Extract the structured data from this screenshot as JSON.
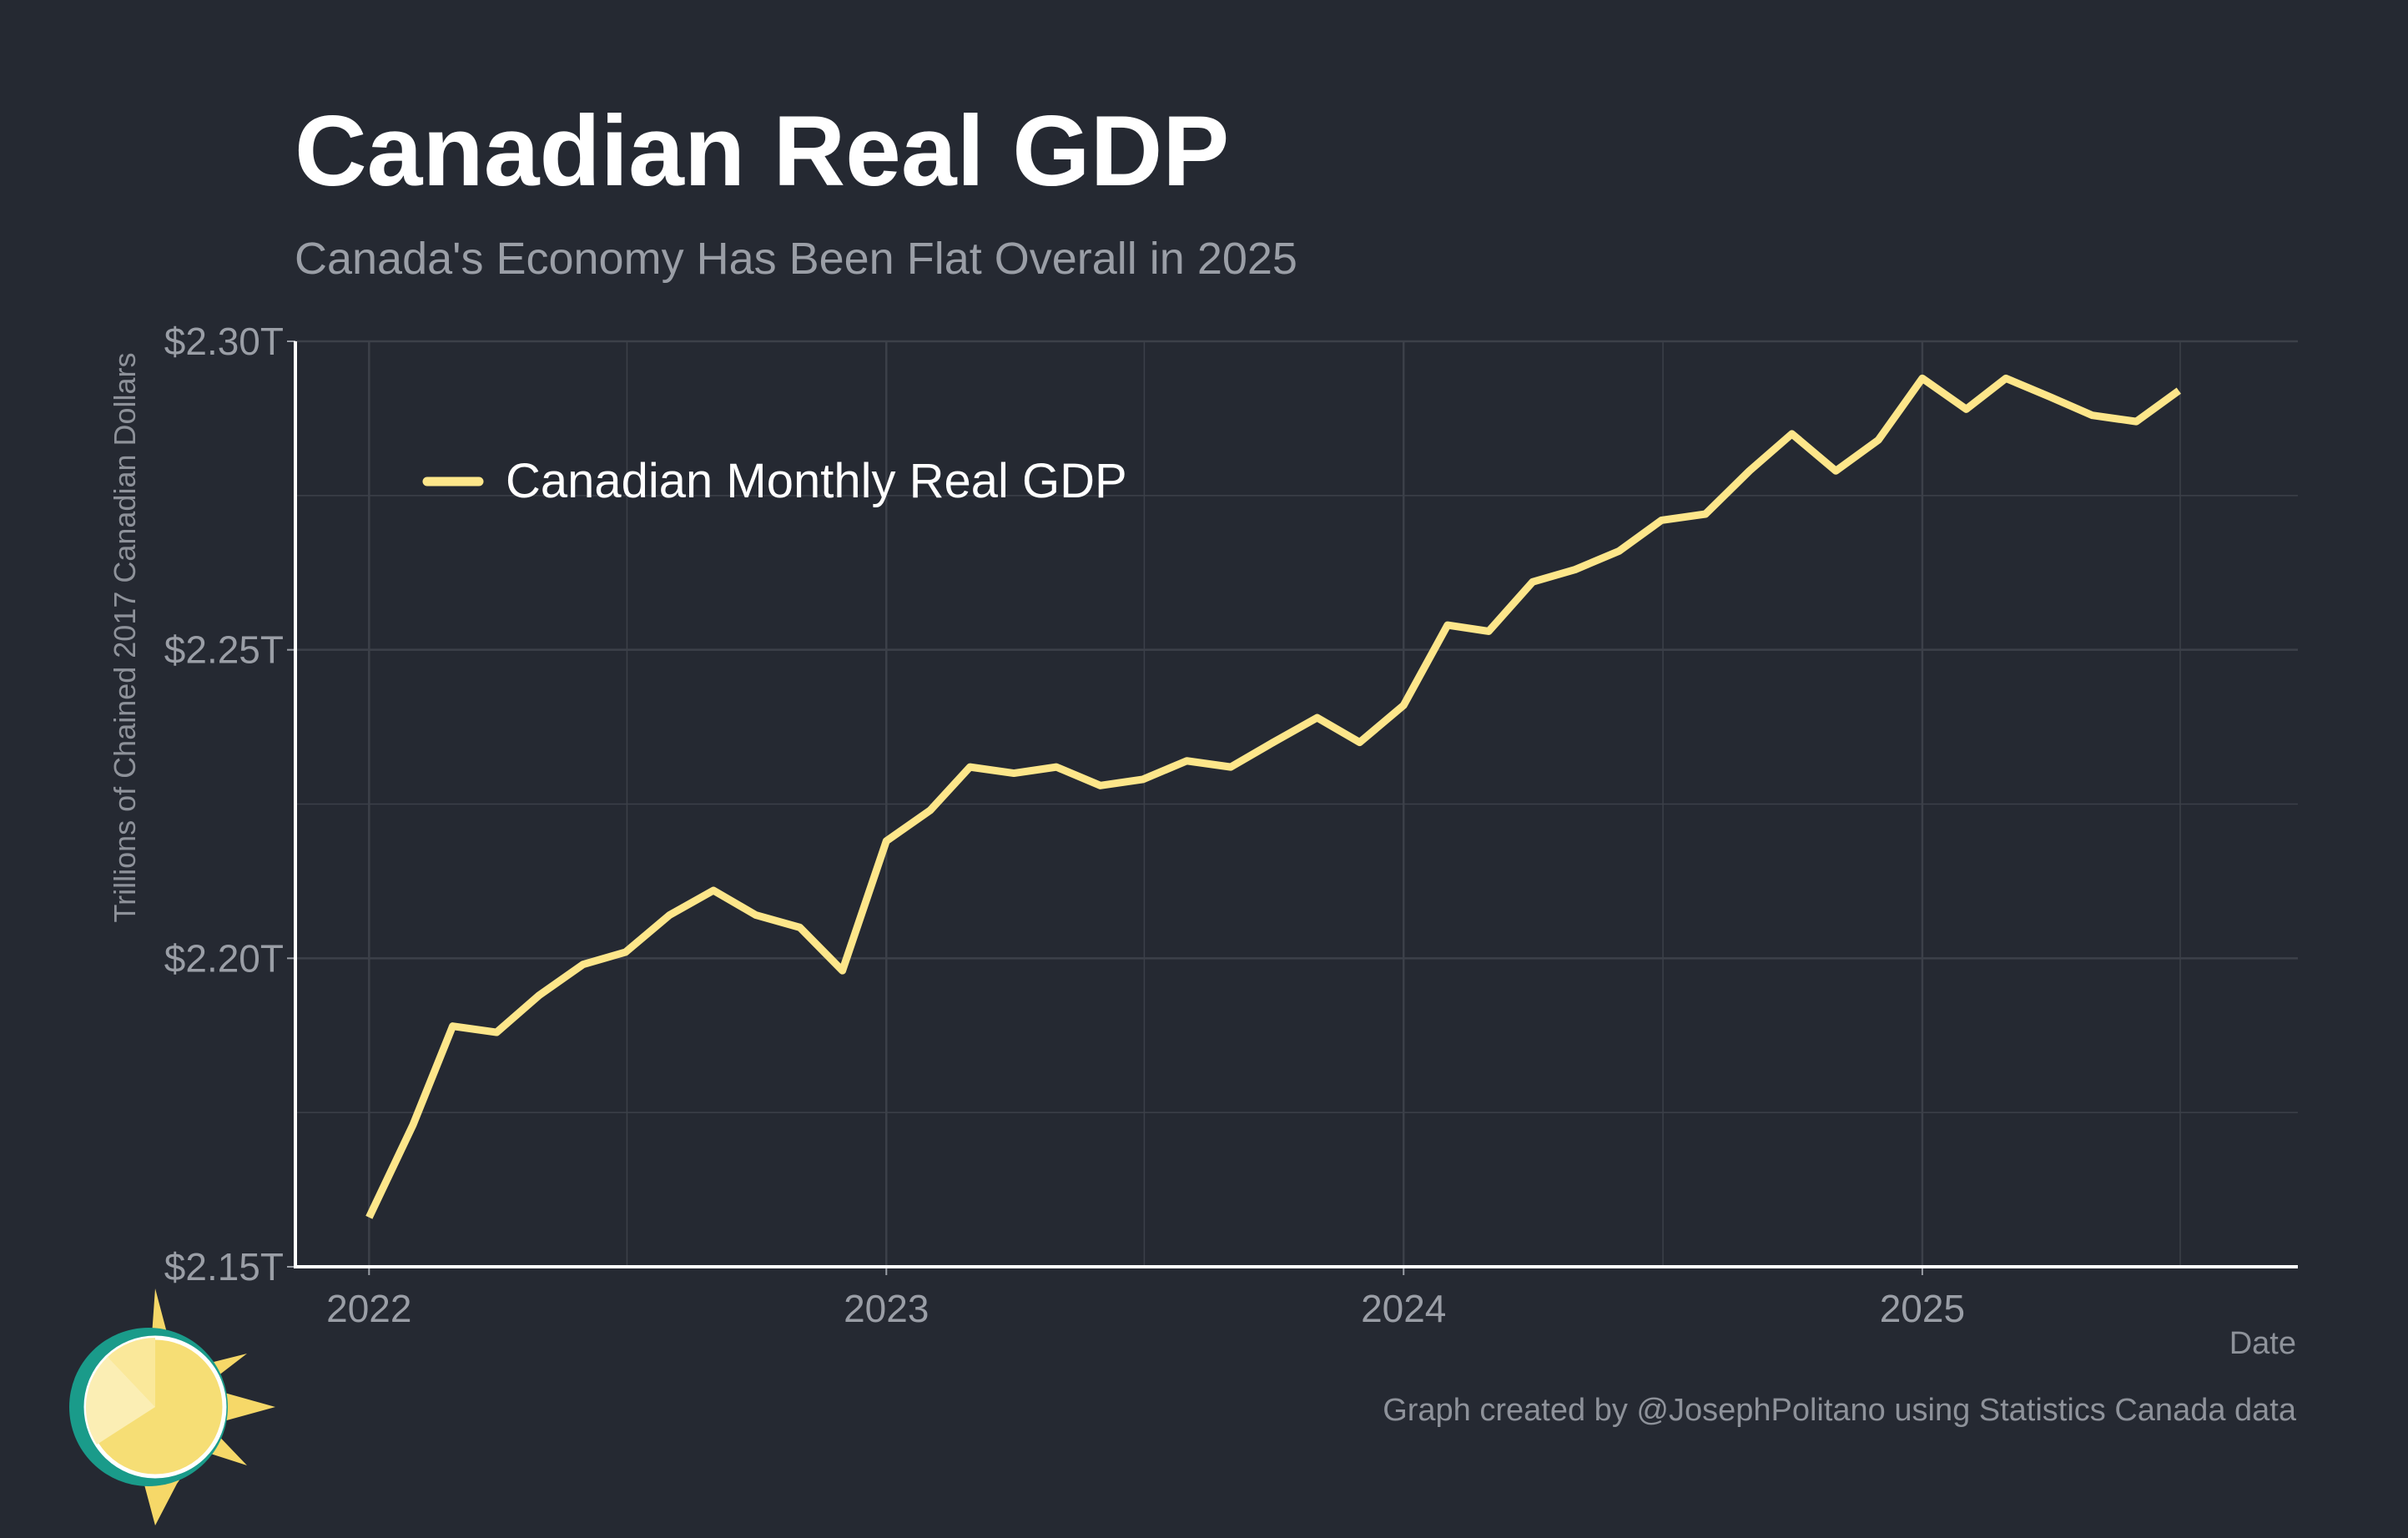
{
  "chart_data": {
    "type": "line",
    "title": "Canadian Real GDP",
    "subtitle": "Canada's Economy Has Been Flat Overall in 2025",
    "xlabel": "Date",
    "ylabel": "Trillions of Chained 2017 Canadian Dollars",
    "caption": "Graph created by @JosephPolitano using Statistics Canada data",
    "xlim": [
      "2021-11-10",
      "2025-09-23"
    ],
    "ylim": [
      2.15,
      2.3
    ],
    "x_ticks": [
      {
        "value": "2022-01-01",
        "label": "2022"
      },
      {
        "value": "2023-01-01",
        "label": "2023"
      },
      {
        "value": "2024-01-01",
        "label": "2024"
      },
      {
        "value": "2025-01-01",
        "label": "2025"
      }
    ],
    "y_ticks": [
      {
        "value": 2.15,
        "label": "$2.15T"
      },
      {
        "value": 2.2,
        "label": "$2.20T"
      },
      {
        "value": 2.25,
        "label": "$2.25T"
      },
      {
        "value": 2.3,
        "label": "$2.30T"
      }
    ],
    "grid": true,
    "legend_position": "top-left",
    "colors": {
      "background": "#252932",
      "series": "#fde68a",
      "grid": "#3c4049",
      "axis": "#ffffff",
      "text_muted": "#9a9ea6"
    },
    "series": [
      {
        "name": "Canadian Monthly Real GDP",
        "x": [
          "2022-01",
          "2022-02",
          "2022-03",
          "2022-04",
          "2022-05",
          "2022-06",
          "2022-07",
          "2022-08",
          "2022-09",
          "2022-10",
          "2022-11",
          "2022-12",
          "2023-01",
          "2023-02",
          "2023-03",
          "2023-04",
          "2023-05",
          "2023-06",
          "2023-07",
          "2023-08",
          "2023-09",
          "2023-10",
          "2023-11",
          "2023-12",
          "2024-01",
          "2024-02",
          "2024-03",
          "2024-04",
          "2024-05",
          "2024-06",
          "2024-07",
          "2024-08",
          "2024-09",
          "2024-10",
          "2024-11",
          "2024-12",
          "2025-01",
          "2025-02",
          "2025-03",
          "2025-04",
          "2025-05",
          "2025-06",
          "2025-07"
        ],
        "values": [
          2.158,
          2.173,
          2.189,
          2.188,
          2.194,
          2.199,
          2.201,
          2.207,
          2.211,
          2.207,
          2.205,
          2.198,
          2.219,
          2.224,
          2.231,
          2.23,
          2.231,
          2.228,
          2.229,
          2.232,
          2.231,
          2.235,
          2.239,
          2.235,
          2.241,
          2.254,
          2.253,
          2.261,
          2.263,
          2.266,
          2.271,
          2.272,
          2.279,
          2.285,
          2.279,
          2.284,
          2.294,
          2.289,
          2.294,
          2.291,
          2.288,
          2.287,
          2.292
        ]
      }
    ]
  }
}
